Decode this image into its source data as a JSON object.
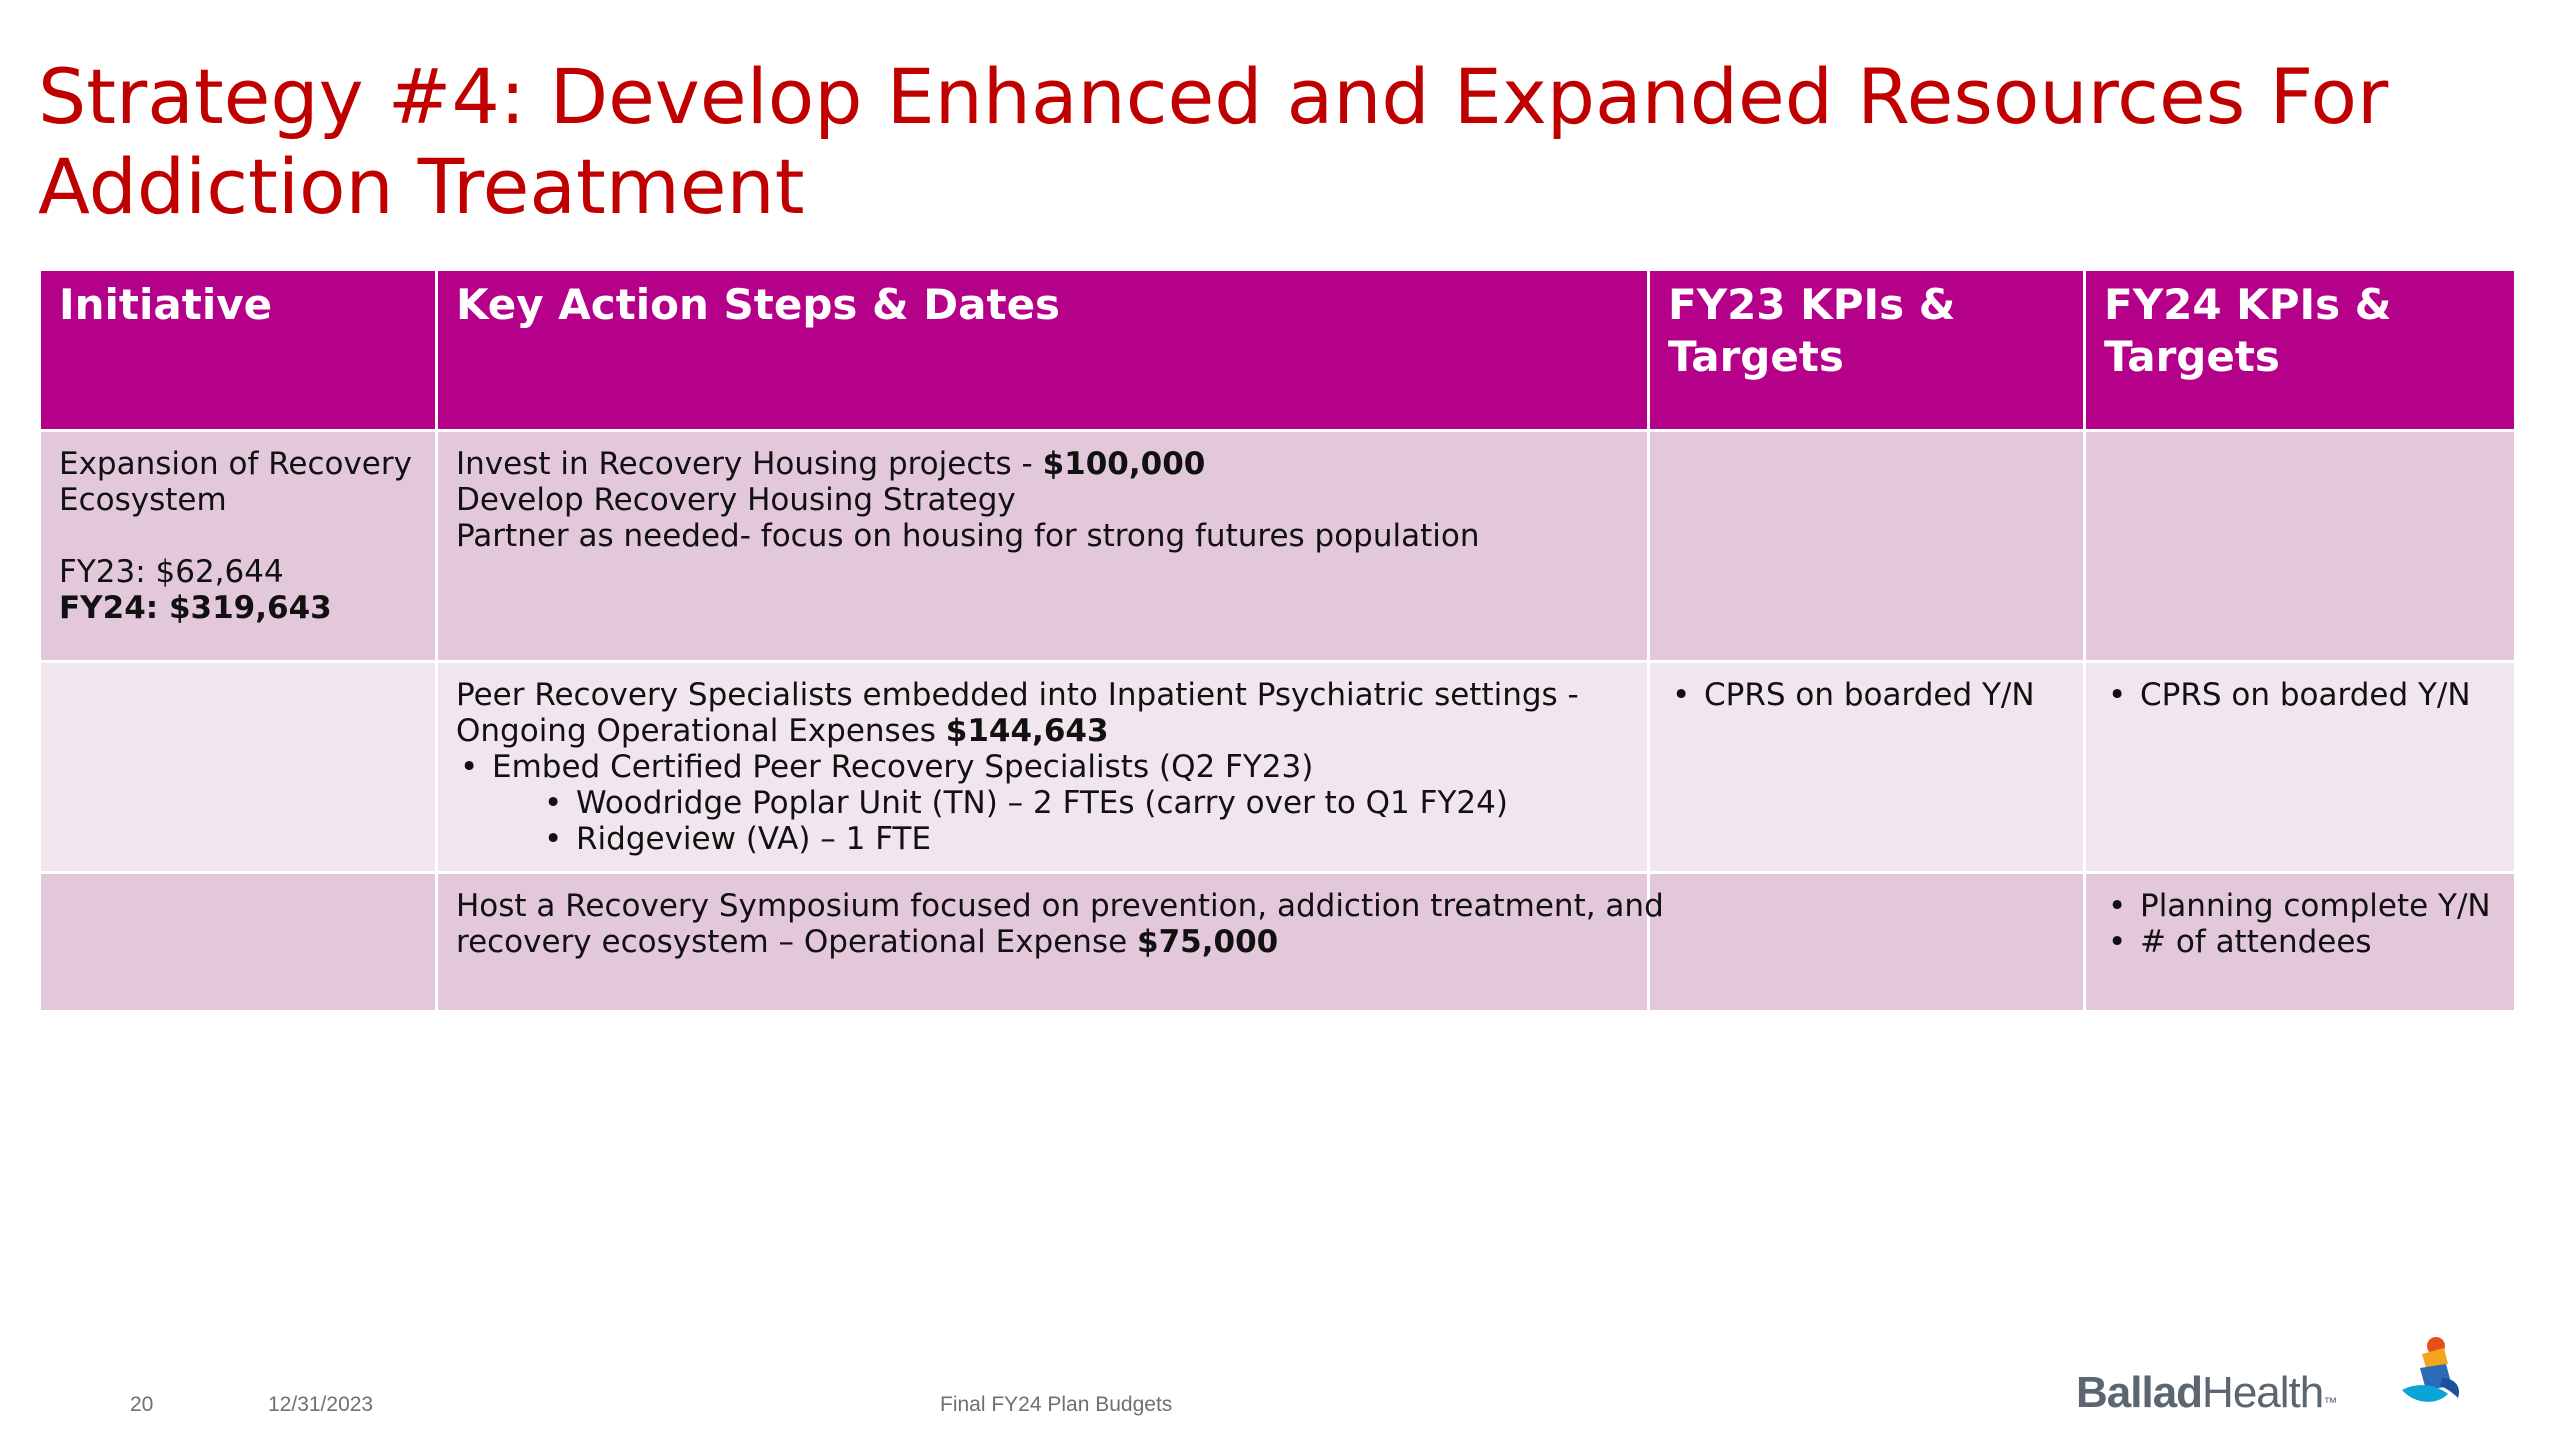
{
  "title": {
    "line1": "Strategy #4: Develop Enhanced and Expanded Resources For",
    "line2": "Addiction Treatment"
  },
  "table": {
    "headers": [
      "Initiative",
      "Key Action Steps & Dates",
      "FY23 KPIs & Targets",
      "FY24 KPIs & Targets"
    ],
    "row1": {
      "initiative": "Expansion of Recovery Ecosystem",
      "fy23_budget": "FY23: $62,644",
      "fy24_budget": "FY24: $319,643",
      "action_line1_text": "Invest in Recovery Housing projects - ",
      "action_line1_amount": "$100,000",
      "action_line2": "Develop Recovery Housing Strategy",
      "action_line3": "Partner as needed- focus on housing for strong futures population"
    },
    "row2": {
      "action_line1": "Peer Recovery Specialists embedded into Inpatient Psychiatric settings -",
      "action_line2_text": "Ongoing Operational Expenses ",
      "action_line2_amount": "$144,643",
      "bullet1": "Embed Certified Peer Recovery Specialists (Q2 FY23)",
      "sub_bullet1": "Woodridge Poplar Unit (TN) – 2 FTEs (carry over to Q1 FY24)",
      "sub_bullet2": "Ridgeview (VA) – 1 FTE",
      "fy23_kpi": "CPRS on boarded Y/N",
      "fy24_kpi": "CPRS on boarded Y/N"
    },
    "row3": {
      "action_line1": "Host a Recovery Symposium focused on prevention, addiction treatment, and",
      "action_line2_text": "recovery ecosystem – Operational Expense ",
      "action_line2_amount": "$75,000",
      "fy24_kpi1": "Planning complete Y/N",
      "fy24_kpi2": "# of attendees"
    }
  },
  "footer": {
    "page_number": "20",
    "date": "12/31/2023",
    "document_title": "Final FY24 Plan Budgets"
  },
  "logo": {
    "text_bold": "Ballad",
    "text_regular": "Health",
    "tm": "™"
  },
  "colors": {
    "title": "#c00000",
    "header_bg": "#b5018a",
    "row_dark": "#e3c8dc",
    "row_light": "#f2e6ee"
  }
}
